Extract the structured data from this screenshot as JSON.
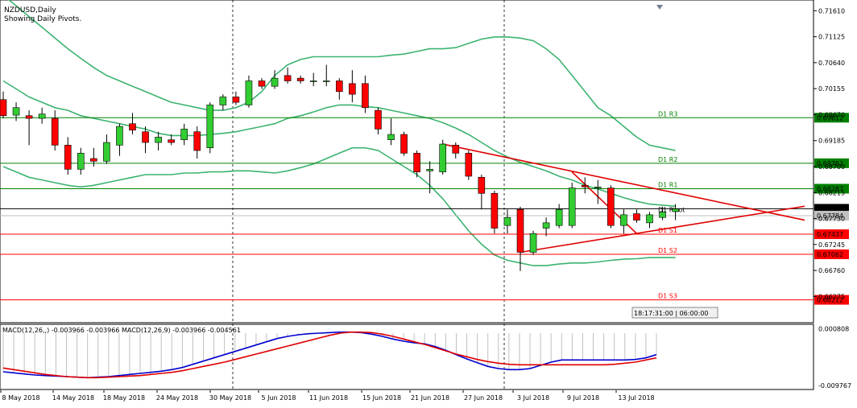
{
  "chart_data": {
    "type": "candlestick",
    "title": "NZDUSD,Daily",
    "subtitle": "Showing Daily Pivots.",
    "ylim": [
      0.658,
      0.7181
    ],
    "y_ticks": [
      "0.71610",
      "0.71125",
      "0.70640",
      "0.70155",
      "0.69670",
      "0.69185",
      "0.68700",
      "0.68215",
      "0.67730",
      "0.67245",
      "0.66760",
      "0.66275"
    ],
    "x_ticks": [
      "8 May 2018",
      "14 May 2018",
      "18 May 2018",
      "24 May 2018",
      "30 May 2018",
      "5 Jun 2018",
      "11 Jun 2018",
      "15 Jun 2018",
      "21 Jun 2018",
      "27 Jun 2018",
      "3 Jul 2018",
      "9 Jul 2018",
      "13 Jul 2018"
    ],
    "bull_color": "#32cd32",
    "bear_color": "#ff0000",
    "candles": [
      {
        "o": 0.6995,
        "h": 0.701,
        "l": 0.696,
        "c": 0.6965
      },
      {
        "o": 0.6966,
        "h": 0.699,
        "l": 0.6955,
        "c": 0.698
      },
      {
        "o": 0.6965,
        "h": 0.6975,
        "l": 0.691,
        "c": 0.696
      },
      {
        "o": 0.696,
        "h": 0.698,
        "l": 0.695,
        "c": 0.6968
      },
      {
        "o": 0.696,
        "h": 0.6975,
        "l": 0.69,
        "c": 0.691
      },
      {
        "o": 0.691,
        "h": 0.6925,
        "l": 0.6855,
        "c": 0.6865
      },
      {
        "o": 0.6865,
        "h": 0.6905,
        "l": 0.6855,
        "c": 0.6895
      },
      {
        "o": 0.6885,
        "h": 0.6905,
        "l": 0.687,
        "c": 0.688
      },
      {
        "o": 0.688,
        "h": 0.693,
        "l": 0.6875,
        "c": 0.6915
      },
      {
        "o": 0.691,
        "h": 0.695,
        "l": 0.689,
        "c": 0.6945
      },
      {
        "o": 0.695,
        "h": 0.697,
        "l": 0.693,
        "c": 0.6938
      },
      {
        "o": 0.6935,
        "h": 0.6945,
        "l": 0.6895,
        "c": 0.6915
      },
      {
        "o": 0.6915,
        "h": 0.6935,
        "l": 0.69,
        "c": 0.6925
      },
      {
        "o": 0.692,
        "h": 0.693,
        "l": 0.691,
        "c": 0.6915
      },
      {
        "o": 0.692,
        "h": 0.695,
        "l": 0.691,
        "c": 0.694
      },
      {
        "o": 0.6935,
        "h": 0.6945,
        "l": 0.6885,
        "c": 0.69
      },
      {
        "o": 0.6905,
        "h": 0.699,
        "l": 0.6895,
        "c": 0.6985
      },
      {
        "o": 0.6985,
        "h": 0.7005,
        "l": 0.6975,
        "c": 0.7
      },
      {
        "o": 0.7,
        "h": 0.701,
        "l": 0.6985,
        "c": 0.699
      },
      {
        "o": 0.6985,
        "h": 0.704,
        "l": 0.698,
        "c": 0.703
      },
      {
        "o": 0.703,
        "h": 0.7035,
        "l": 0.7015,
        "c": 0.702
      },
      {
        "o": 0.702,
        "h": 0.705,
        "l": 0.7015,
        "c": 0.7035
      },
      {
        "o": 0.704,
        "h": 0.7055,
        "l": 0.7025,
        "c": 0.703
      },
      {
        "o": 0.7035,
        "h": 0.704,
        "l": 0.7025,
        "c": 0.703
      },
      {
        "o": 0.703,
        "h": 0.7045,
        "l": 0.702,
        "c": 0.703
      },
      {
        "o": 0.703,
        "h": 0.706,
        "l": 0.702,
        "c": 0.703
      },
      {
        "o": 0.703,
        "h": 0.7035,
        "l": 0.6995,
        "c": 0.701
      },
      {
        "o": 0.7025,
        "h": 0.705,
        "l": 0.699,
        "c": 0.7005
      },
      {
        "o": 0.7025,
        "h": 0.704,
        "l": 0.697,
        "c": 0.698
      },
      {
        "o": 0.6975,
        "h": 0.698,
        "l": 0.693,
        "c": 0.694
      },
      {
        "o": 0.692,
        "h": 0.696,
        "l": 0.691,
        "c": 0.693
      },
      {
        "o": 0.693,
        "h": 0.6935,
        "l": 0.689,
        "c": 0.6895
      },
      {
        "o": 0.6895,
        "h": 0.69,
        "l": 0.685,
        "c": 0.686
      },
      {
        "o": 0.6862,
        "h": 0.688,
        "l": 0.682,
        "c": 0.6865
      },
      {
        "o": 0.686,
        "h": 0.692,
        "l": 0.6855,
        "c": 0.6912
      },
      {
        "o": 0.691,
        "h": 0.6915,
        "l": 0.6885,
        "c": 0.6895
      },
      {
        "o": 0.6895,
        "h": 0.69,
        "l": 0.6845,
        "c": 0.6852
      },
      {
        "o": 0.685,
        "h": 0.6855,
        "l": 0.679,
        "c": 0.682
      },
      {
        "o": 0.682,
        "h": 0.6825,
        "l": 0.6745,
        "c": 0.6755
      },
      {
        "o": 0.676,
        "h": 0.679,
        "l": 0.6745,
        "c": 0.6775
      },
      {
        "o": 0.679,
        "h": 0.6795,
        "l": 0.6675,
        "c": 0.671
      },
      {
        "o": 0.671,
        "h": 0.675,
        "l": 0.6705,
        "c": 0.6745
      },
      {
        "o": 0.6755,
        "h": 0.6775,
        "l": 0.674,
        "c": 0.6765
      },
      {
        "o": 0.676,
        "h": 0.68,
        "l": 0.6755,
        "c": 0.679
      },
      {
        "o": 0.676,
        "h": 0.684,
        "l": 0.6755,
        "c": 0.683
      },
      {
        "o": 0.6835,
        "h": 0.685,
        "l": 0.682,
        "c": 0.6832
      },
      {
        "o": 0.6832,
        "h": 0.6845,
        "l": 0.68,
        "c": 0.6832
      },
      {
        "o": 0.683,
        "h": 0.6835,
        "l": 0.6755,
        "c": 0.676
      },
      {
        "o": 0.676,
        "h": 0.679,
        "l": 0.6745,
        "c": 0.678
      },
      {
        "o": 0.6782,
        "h": 0.679,
        "l": 0.6765,
        "c": 0.677
      },
      {
        "o": 0.6765,
        "h": 0.6785,
        "l": 0.6755,
        "c": 0.678
      },
      {
        "o": 0.6775,
        "h": 0.6795,
        "l": 0.677,
        "c": 0.6785
      },
      {
        "o": 0.6786,
        "h": 0.68,
        "l": 0.677,
        "c": 0.6791
      }
    ],
    "bollinger": {
      "upper": [
        0.719,
        0.717,
        0.715,
        0.713,
        0.711,
        0.709,
        0.7072,
        0.7055,
        0.704,
        0.703,
        0.702,
        0.701,
        0.7,
        0.699,
        0.6985,
        0.698,
        0.6975,
        0.6975,
        0.698,
        0.699,
        0.701,
        0.704,
        0.706,
        0.707,
        0.7075,
        0.7075,
        0.7075,
        0.7075,
        0.7075,
        0.7075,
        0.7078,
        0.708,
        0.7085,
        0.709,
        0.709,
        0.7092,
        0.71,
        0.7108,
        0.7112,
        0.7112,
        0.711,
        0.7105,
        0.709,
        0.707,
        0.704,
        0.701,
        0.698,
        0.6965,
        0.6945,
        0.6925,
        0.691,
        0.6905,
        0.69
      ],
      "middle": [
        0.703,
        0.7015,
        0.7,
        0.699,
        0.698,
        0.6975,
        0.6965,
        0.696,
        0.6955,
        0.695,
        0.6945,
        0.694,
        0.6932,
        0.6928,
        0.6928,
        0.6928,
        0.693,
        0.6932,
        0.6935,
        0.694,
        0.6945,
        0.695,
        0.696,
        0.6965,
        0.6972,
        0.698,
        0.6985,
        0.6985,
        0.6982,
        0.698,
        0.6975,
        0.697,
        0.6965,
        0.696,
        0.6952,
        0.6942,
        0.693,
        0.6915,
        0.69,
        0.6888,
        0.6878,
        0.687,
        0.6862,
        0.6852,
        0.6845,
        0.6835,
        0.6828,
        0.682,
        0.6812,
        0.6805,
        0.68,
        0.6798,
        0.6796
      ],
      "lower": [
        0.687,
        0.686,
        0.685,
        0.6845,
        0.684,
        0.6835,
        0.6832,
        0.6835,
        0.684,
        0.6845,
        0.685,
        0.6855,
        0.6855,
        0.6855,
        0.6858,
        0.6858,
        0.686,
        0.686,
        0.6862,
        0.6862,
        0.686,
        0.6858,
        0.6862,
        0.6868,
        0.6875,
        0.6885,
        0.6895,
        0.6905,
        0.6905,
        0.69,
        0.6885,
        0.687,
        0.6855,
        0.6835,
        0.681,
        0.678,
        0.675,
        0.6725,
        0.6705,
        0.6695,
        0.669,
        0.6685,
        0.6685,
        0.6688,
        0.669,
        0.669,
        0.6692,
        0.6695,
        0.6697,
        0.6698,
        0.67,
        0.67,
        0.67
      ]
    },
    "pivot_levels": [
      {
        "name": "D1 R3",
        "value": 0.69612,
        "label": "0.69612",
        "color": "#008000"
      },
      {
        "name": "D1 R2",
        "value": 0.68762,
        "label": "0.68762",
        "color": "#008000"
      },
      {
        "name": "D1 R1",
        "value": 0.68287,
        "label": "0.68287",
        "color": "#008000"
      },
      {
        "name": "D1 Pivot",
        "value": 0.67912,
        "label": "0.67912",
        "color": "#000000"
      },
      {
        "name": "D1 S1",
        "value": 0.67437,
        "label": "0.67437",
        "color": "#ff0000"
      },
      {
        "name": "D1 S2",
        "value": 0.67062,
        "label": "0.67062",
        "color": "#ff0000"
      },
      {
        "name": "D1 S3",
        "value": 0.66212,
        "label": "0.66212",
        "color": "#ff0000"
      }
    ],
    "current_price": {
      "value": 0.67784,
      "label": "0.67784"
    },
    "trendlines": [
      {
        "from": [
          34,
          0.6912
        ],
        "to": [
          62,
          0.677
        ]
      },
      {
        "from": [
          40,
          0.671
        ],
        "to": [
          62,
          0.6796
        ]
      },
      {
        "from": [
          44,
          0.686
        ],
        "to": [
          49,
          0.6745
        ]
      }
    ],
    "countdown": "18:17:31:00 | 06:00:00",
    "macd": {
      "label": "MACD(12,26,,) -0.003966 -0.003966 MACD(12,26,9) -0.003966 -0.004561",
      "ylim": [
        -0.0105,
        0.0015
      ],
      "y_ticks": [
        "0.000808",
        "-0.009767"
      ],
      "main_line": [
        -0.0072,
        -0.0074,
        -0.0076,
        -0.0078,
        -0.0079,
        -0.008,
        -0.0081,
        -0.0082,
        -0.0083,
        -0.0082,
        -0.0081,
        -0.0079,
        -0.0077,
        -0.0075,
        -0.0073,
        -0.0071,
        -0.0068,
        -0.0064,
        -0.0058,
        -0.0052,
        -0.0046,
        -0.004,
        -0.0034,
        -0.0028,
        -0.0022,
        -0.0016,
        -0.001,
        -0.0006,
        -0.0003,
        -0.0001,
        0.0,
        0.0001,
        0.0002,
        0.0002,
        0.0001,
        -0.0002,
        -0.0006,
        -0.0011,
        -0.0015,
        -0.0018,
        -0.002,
        -0.0025,
        -0.0032,
        -0.004,
        -0.0048,
        -0.0055,
        -0.0062,
        -0.0066,
        -0.0068,
        -0.0068,
        -0.0066,
        -0.006,
        -0.0054,
        -0.005,
        -0.005,
        -0.005,
        -0.005,
        -0.005,
        -0.005,
        -0.005,
        -0.0049,
        -0.0046,
        -0.004
      ],
      "signal_line": [
        -0.0065,
        -0.0068,
        -0.0071,
        -0.0074,
        -0.0077,
        -0.0079,
        -0.0081,
        -0.0082,
        -0.0083,
        -0.0083,
        -0.0082,
        -0.0081,
        -0.008,
        -0.0079,
        -0.0077,
        -0.0075,
        -0.0073,
        -0.007,
        -0.0066,
        -0.0062,
        -0.0058,
        -0.0054,
        -0.0049,
        -0.0044,
        -0.0039,
        -0.0034,
        -0.0029,
        -0.0024,
        -0.0019,
        -0.0014,
        -0.0009,
        -0.0004,
        0.0,
        0.0002,
        0.0002,
        0.0001,
        -0.0002,
        -0.0006,
        -0.0011,
        -0.0016,
        -0.0021,
        -0.0027,
        -0.0033,
        -0.0039,
        -0.0044,
        -0.0049,
        -0.0053,
        -0.0056,
        -0.0058,
        -0.0059,
        -0.0059,
        -0.0059,
        -0.0059,
        -0.0059,
        -0.0059,
        -0.0059,
        -0.0059,
        -0.0059,
        -0.0058,
        -0.0056,
        -0.0054,
        -0.005,
        -0.0046
      ]
    }
  }
}
